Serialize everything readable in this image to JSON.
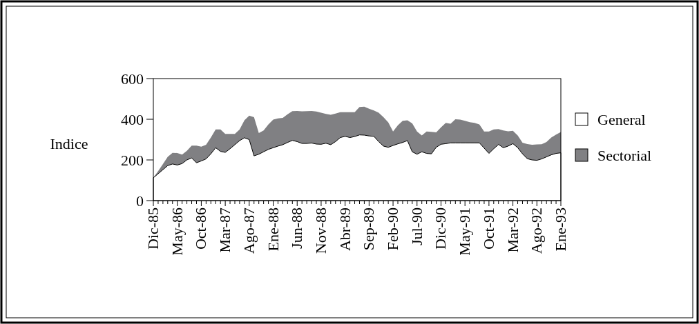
{
  "chart_data": {
    "type": "area",
    "ylabel": "Indice",
    "legend": "right",
    "categories": [
      "Dic-85",
      null,
      null,
      null,
      null,
      "May-86",
      null,
      null,
      null,
      null,
      "Oct-86",
      null,
      null,
      null,
      null,
      "Mar-87",
      null,
      null,
      null,
      null,
      "Ago-87",
      null,
      null,
      null,
      null,
      "Ene-88",
      null,
      null,
      null,
      null,
      "Jun-88",
      null,
      null,
      null,
      null,
      "Nov-88",
      null,
      null,
      null,
      null,
      "Abr-89",
      null,
      null,
      null,
      null,
      "Sep-89",
      null,
      null,
      null,
      null,
      "Feb-90",
      null,
      null,
      null,
      null,
      "Jul-90",
      null,
      null,
      null,
      null,
      "Dic-90",
      null,
      null,
      null,
      null,
      "May-91",
      null,
      null,
      null,
      null,
      "Oct-91",
      null,
      null,
      null,
      null,
      "Mar-92",
      null,
      null,
      null,
      null,
      "Ago-92",
      null,
      null,
      null,
      null,
      "Ene-93"
    ],
    "ylim": [
      0,
      600
    ],
    "yticks": [
      0,
      200,
      400,
      600
    ],
    "series": [
      {
        "name": "Sectorial",
        "color": "#808083",
        "values": [
          112,
          145,
          180,
          215,
          235,
          234,
          226,
          245,
          270,
          270,
          265,
          275,
          310,
          350,
          350,
          328,
          328,
          328,
          350,
          395,
          418,
          410,
          332,
          345,
          375,
          398,
          404,
          407,
          425,
          440,
          441,
          439,
          440,
          441,
          438,
          432,
          426,
          422,
          428,
          435,
          435,
          435,
          435,
          460,
          462,
          452,
          443,
          432,
          410,
          385,
          340,
          370,
          392,
          395,
          380,
          340,
          320,
          340,
          338,
          336,
          360,
          382,
          378,
          400,
          398,
          392,
          386,
          382,
          375,
          340,
          340,
          350,
          352,
          345,
          341,
          343,
          320,
          285,
          278,
          275,
          276,
          277,
          288,
          310,
          325,
          337
        ]
      },
      {
        "name": "General",
        "color": "#ffffff",
        "values": [
          112,
          132,
          152,
          172,
          180,
          175,
          182,
          200,
          210,
          186,
          195,
          205,
          230,
          260,
          242,
          237,
          255,
          275,
          295,
          309,
          300,
          220,
          228,
          240,
          252,
          260,
          268,
          275,
          286,
          296,
          290,
          281,
          281,
          283,
          278,
          277,
          282,
          275,
          290,
          310,
          316,
          310,
          315,
          323,
          322,
          318,
          316,
          290,
          268,
          262,
          271,
          279,
          286,
          295,
          240,
          228,
          240,
          232,
          230,
          262,
          277,
          280,
          284,
          284,
          284,
          284,
          284,
          284,
          284,
          258,
          232,
          255,
          276,
          260,
          268,
          280,
          260,
          230,
          206,
          200,
          198,
          205,
          215,
          225,
          232,
          235
        ]
      }
    ]
  }
}
